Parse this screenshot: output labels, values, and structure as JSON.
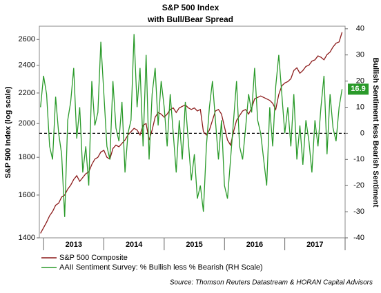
{
  "chart_data": {
    "type": "line",
    "title": "S&P 500 Index",
    "subtitle": "with Bull/Bear Spread",
    "ylabel": "S&P 500 Index (log scale)",
    "y2label": "Bullish Sentiment less Bearish Sentiment",
    "source": "Source: Thomson Reuters Datastream & HORAN Capital Advisors",
    "log_y": true,
    "ylim": [
      1400,
      2710
    ],
    "yticks": [
      1400,
      1600,
      1800,
      2000,
      2200,
      2400,
      2600
    ],
    "y2lim": [
      -40,
      41
    ],
    "y2ticks": [
      -40,
      -30,
      -20,
      -10,
      0,
      10,
      20,
      30,
      40
    ],
    "y2_reference_line": 0,
    "xlim": [
      2012.93,
      2018.0
    ],
    "xticks": [
      2013,
      2014,
      2015,
      2016,
      2017,
      2018
    ],
    "xtick_labels": [
      {
        "value": 2013.5,
        "label": "2013"
      },
      {
        "value": 2014.5,
        "label": "2014"
      },
      {
        "value": 2015.5,
        "label": "2015"
      },
      {
        "value": 2016.5,
        "label": "2016"
      },
      {
        "value": 2017.5,
        "label": "2017"
      }
    ],
    "x": [
      2012.95,
      2013.0,
      2013.05,
      2013.1,
      2013.15,
      2013.2,
      2013.25,
      2013.3,
      2013.35,
      2013.4,
      2013.45,
      2013.5,
      2013.55,
      2013.6,
      2013.65,
      2013.7,
      2013.75,
      2013.8,
      2013.85,
      2013.9,
      2013.95,
      2014.0,
      2014.05,
      2014.1,
      2014.15,
      2014.2,
      2014.25,
      2014.3,
      2014.35,
      2014.4,
      2014.45,
      2014.5,
      2014.55,
      2014.6,
      2014.65,
      2014.7,
      2014.75,
      2014.8,
      2014.85,
      2014.9,
      2014.95,
      2015.0,
      2015.05,
      2015.1,
      2015.15,
      2015.2,
      2015.25,
      2015.3,
      2015.35,
      2015.4,
      2015.45,
      2015.5,
      2015.55,
      2015.6,
      2015.65,
      2015.7,
      2015.75,
      2015.8,
      2015.85,
      2015.9,
      2015.95,
      2016.0,
      2016.05,
      2016.1,
      2016.15,
      2016.2,
      2016.25,
      2016.3,
      2016.35,
      2016.4,
      2016.45,
      2016.5,
      2016.55,
      2016.6,
      2016.65,
      2016.7,
      2016.75,
      2016.8,
      2016.85,
      2016.9,
      2016.95,
      2017.0,
      2017.05,
      2017.1,
      2017.15,
      2017.2,
      2017.25,
      2017.3,
      2017.35,
      2017.4,
      2017.45,
      2017.5,
      2017.55,
      2017.6,
      2017.65,
      2017.7,
      2017.75,
      2017.8,
      2017.85,
      2017.9,
      2017.95
    ],
    "series": [
      {
        "name": "S&P 500 Composite",
        "color": "#8b1a1a",
        "axis": "y",
        "values": [
          1420,
          1445,
          1470,
          1500,
          1520,
          1550,
          1560,
          1590,
          1600,
          1630,
          1650,
          1680,
          1700,
          1670,
          1690,
          1710,
          1720,
          1760,
          1790,
          1800,
          1830,
          1840,
          1800,
          1790,
          1850,
          1870,
          1860,
          1880,
          1900,
          1930,
          1950,
          1970,
          1960,
          1930,
          1990,
          2000,
          1900,
          1960,
          2040,
          2070,
          2060,
          2040,
          2060,
          2090,
          2100,
          2070,
          2100,
          2110,
          2120,
          2100,
          2090,
          2100,
          2080,
          2090,
          1950,
          1930,
          1960,
          2020,
          2080,
          2090,
          2060,
          1980,
          1900,
          1870,
          1950,
          2020,
          2050,
          2080,
          2090,
          2060,
          2100,
          2160,
          2170,
          2180,
          2170,
          2160,
          2150,
          2130,
          2090,
          2190,
          2250,
          2270,
          2280,
          2300,
          2360,
          2380,
          2340,
          2360,
          2390,
          2400,
          2430,
          2440,
          2470,
          2460,
          2440,
          2480,
          2500,
          2540,
          2570,
          2580,
          2660
        ]
      },
      {
        "name": "AAII Sentiment Survey: % Bullish less % Bearish (RH Scale)",
        "color": "#2a9a2a",
        "axis": "y2",
        "values": [
          10,
          22,
          15,
          -5,
          -10,
          14,
          0,
          -8,
          -32,
          5,
          12,
          25,
          -2,
          10,
          -15,
          -5,
          -20,
          20,
          3,
          8,
          35,
          15,
          -5,
          -10,
          20,
          2,
          -3,
          12,
          -15,
          0,
          5,
          38,
          10,
          25,
          -5,
          30,
          -10,
          15,
          25,
          3,
          20,
          10,
          -5,
          15,
          0,
          -15,
          5,
          -10,
          12,
          -3,
          -18,
          -8,
          -25,
          -20,
          -30,
          -5,
          10,
          20,
          5,
          -10,
          5,
          -20,
          -25,
          -10,
          5,
          20,
          -5,
          -10,
          2,
          15,
          8,
          25,
          5,
          0,
          -10,
          -20,
          10,
          -5,
          18,
          30,
          15,
          0,
          10,
          -5,
          15,
          -10,
          3,
          -12,
          5,
          -3,
          -15,
          5,
          -5,
          10,
          22,
          -8,
          15,
          2,
          -3,
          10,
          16.9
        ]
      }
    ]
  }
}
